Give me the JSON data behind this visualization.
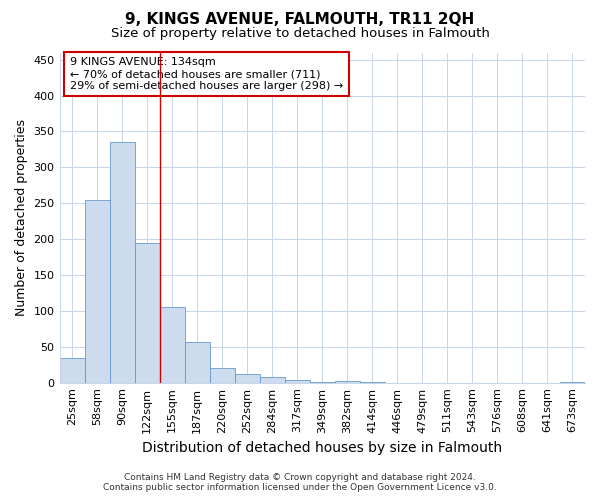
{
  "title": "9, KINGS AVENUE, FALMOUTH, TR11 2QH",
  "subtitle": "Size of property relative to detached houses in Falmouth",
  "xlabel": "Distribution of detached houses by size in Falmouth",
  "ylabel": "Number of detached properties",
  "footer_line1": "Contains HM Land Registry data © Crown copyright and database right 2024.",
  "footer_line2": "Contains public sector information licensed under the Open Government Licence v3.0.",
  "categories": [
    "25sqm",
    "58sqm",
    "90sqm",
    "122sqm",
    "155sqm",
    "187sqm",
    "220sqm",
    "252sqm",
    "284sqm",
    "317sqm",
    "349sqm",
    "382sqm",
    "414sqm",
    "446sqm",
    "479sqm",
    "511sqm",
    "543sqm",
    "576sqm",
    "608sqm",
    "641sqm",
    "673sqm"
  ],
  "values": [
    35,
    255,
    335,
    195,
    106,
    57,
    21,
    12,
    8,
    4,
    1,
    3,
    1,
    0,
    0,
    0,
    0,
    0,
    0,
    0,
    1
  ],
  "bar_color": "#ccdcee",
  "bar_edge_color": "#6699cc",
  "ylim": [
    0,
    460
  ],
  "yticks": [
    0,
    50,
    100,
    150,
    200,
    250,
    300,
    350,
    400,
    450
  ],
  "annotation_text": "9 KINGS AVENUE: 134sqm\n← 70% of detached houses are smaller (711)\n29% of semi-detached houses are larger (298) →",
  "annotation_box_color": "#ffffff",
  "annotation_box_edge_color": "#cc0000",
  "red_line_color": "#cc0000",
  "bg_color": "#ffffff",
  "grid_color": "#c8d4e8",
  "title_fontsize": 11,
  "subtitle_fontsize": 9.5,
  "ylabel_fontsize": 9,
  "xlabel_fontsize": 10,
  "tick_fontsize": 8,
  "annotation_fontsize": 8,
  "footer_fontsize": 6.5
}
